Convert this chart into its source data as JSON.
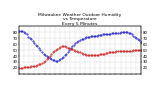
{
  "title": "Milwaukee Weather Outdoor Humidity\nvs Temperature\nEvery 5 Minutes",
  "title_fontsize": 3.2,
  "background_color": "#ffffff",
  "grid_color": "#bbbbbb",
  "blue_color": "#0000cc",
  "red_color": "#cc0000",
  "ylim": [
    10,
    90
  ],
  "xlim": [
    0,
    1
  ],
  "ytick_values": [
    20,
    30,
    40,
    50,
    60,
    70,
    80
  ],
  "humidity_x": [
    0,
    1,
    2,
    3,
    4,
    5,
    6,
    7,
    8,
    9,
    10,
    11,
    12,
    13,
    14,
    15,
    16,
    17,
    18,
    19,
    20,
    21,
    22,
    23,
    24,
    25,
    26,
    27,
    28,
    29,
    30,
    31,
    32,
    33,
    34,
    35,
    36,
    37,
    38,
    39,
    40,
    41,
    42,
    43,
    44,
    45,
    46,
    47,
    48,
    49,
    50,
    51,
    52,
    53,
    54,
    55,
    56,
    57,
    58,
    59,
    60,
    61,
    62,
    63,
    64,
    65,
    66,
    67,
    68,
    69,
    70,
    71,
    72,
    73,
    74,
    75,
    76,
    77,
    78,
    79,
    80
  ],
  "humidity_y": [
    82,
    82,
    81,
    80,
    79,
    76,
    72,
    70,
    68,
    65,
    62,
    59,
    56,
    53,
    50,
    47,
    44,
    42,
    40,
    38,
    36,
    35,
    34,
    33,
    32,
    32,
    33,
    35,
    37,
    39,
    41,
    44,
    47,
    50,
    53,
    56,
    58,
    61,
    63,
    65,
    67,
    68,
    69,
    70,
    71,
    72,
    72,
    73,
    73,
    74,
    74,
    74,
    75,
    75,
    75,
    76,
    76,
    76,
    77,
    77,
    77,
    78,
    78,
    79,
    79,
    79,
    79,
    80,
    80,
    80,
    80,
    80,
    79,
    78,
    76,
    74,
    72,
    70,
    68,
    66,
    64
  ],
  "temp_x": [
    0,
    1,
    2,
    3,
    4,
    5,
    6,
    7,
    8,
    9,
    10,
    11,
    12,
    13,
    14,
    15,
    16,
    17,
    18,
    19,
    20,
    21,
    22,
    23,
    24,
    25,
    26,
    27,
    28,
    29,
    30,
    31,
    32,
    33,
    34,
    35,
    36,
    37,
    38,
    39,
    40,
    41,
    42,
    43,
    44,
    45,
    46,
    47,
    48,
    49,
    50,
    51,
    52,
    53,
    54,
    55,
    56,
    57,
    58,
    59,
    60,
    61,
    62,
    63,
    64,
    65,
    66,
    67,
    68,
    69,
    70,
    71,
    72,
    73,
    74,
    75,
    76,
    77,
    78,
    79,
    80
  ],
  "temp_y": [
    20,
    20,
    20,
    21,
    21,
    21,
    22,
    22,
    23,
    23,
    23,
    24,
    25,
    26,
    27,
    28,
    30,
    32,
    35,
    37,
    40,
    43,
    46,
    48,
    50,
    52,
    54,
    55,
    56,
    56,
    56,
    55,
    54,
    53,
    52,
    51,
    50,
    49,
    48,
    47,
    46,
    45,
    44,
    43,
    42,
    42,
    41,
    41,
    41,
    41,
    41,
    42,
    42,
    43,
    43,
    44,
    44,
    45,
    45,
    46,
    46,
    47,
    47,
    47,
    48,
    48,
    48,
    48,
    49,
    49,
    49,
    49,
    49,
    49,
    49,
    50,
    50,
    50,
    50,
    50,
    50
  ],
  "xtick_count": 25,
  "markersize": 0.8
}
